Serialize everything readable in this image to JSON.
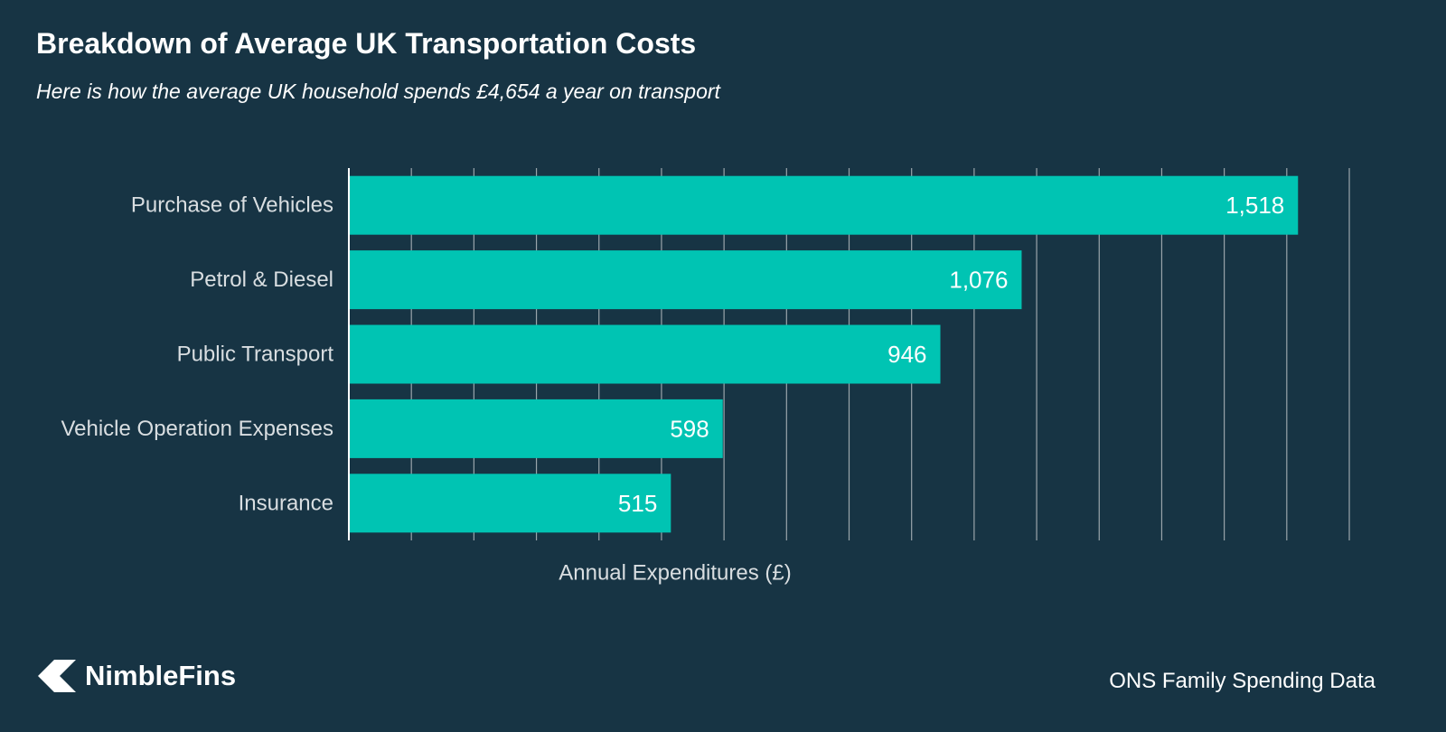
{
  "title": "Breakdown of Average UK Transportation Costs",
  "subtitle": "Here is how the average UK household spends £4,654 a year on transport",
  "chart_data": {
    "type": "bar",
    "orientation": "horizontal",
    "categories": [
      "Purchase of Vehicles",
      "Petrol & Diesel",
      "Public Transport",
      "Vehicle Operation Expenses",
      "Insurance"
    ],
    "values": [
      1518,
      1076,
      946,
      598,
      515
    ],
    "value_labels": [
      "1,518",
      "1,076",
      "946",
      "598",
      "515"
    ],
    "xlabel": "Annual Expenditures (£)",
    "ylabel": "",
    "xlim": [
      0,
      1600
    ],
    "grid_step": 100,
    "grid": true,
    "bar_color": "#00c4b3",
    "grid_color": "#9aa5ab",
    "label_color": "#d9dee1"
  },
  "branding": {
    "logo_text": "NimbleFins",
    "logo_icon": "nimblefins-arrow-icon"
  },
  "source": "ONS Family Spending Data"
}
